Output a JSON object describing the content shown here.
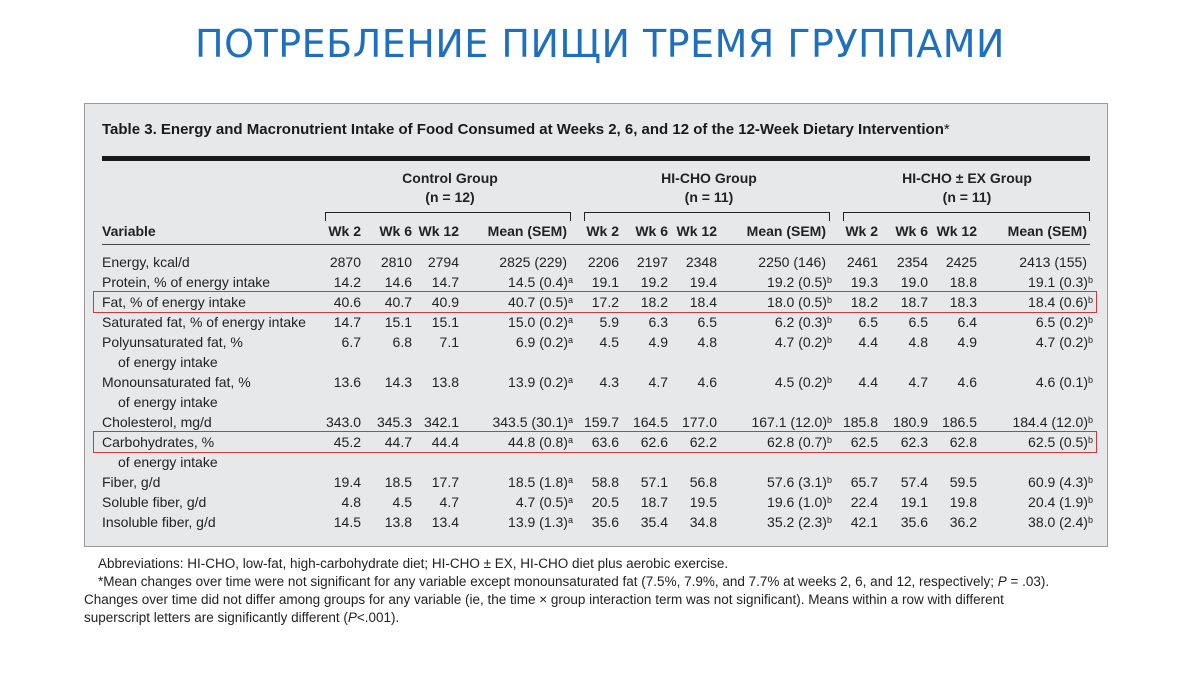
{
  "slide_title": "ПОТРЕБЛЕНИЕ ПИЩИ ТРЕМЯ ГРУППАМИ",
  "table": {
    "caption": "Table 3. Energy and Macronutrient Intake of Food Consumed at Weeks 2, 6, and 12 of the 12-Week Dietary Intervention",
    "caption_mark": "*",
    "groups": [
      {
        "name": "Control Group",
        "n": "(n = 12)"
      },
      {
        "name": "HI-CHO Group",
        "n": "(n = 11)"
      },
      {
        "name": "HI-CHO ± EX Group",
        "n": "(n = 11)"
      }
    ],
    "variable_header": "Variable",
    "column_headers": [
      "Wk 2",
      "Wk 6",
      "Wk 12",
      "Mean (SEM)"
    ],
    "rows": [
      {
        "label": "Energy, kcal/d",
        "label2": "",
        "highlight": false,
        "cells": [
          "2870",
          "2810",
          "2794",
          "2825 (229)",
          "2206",
          "2197",
          "2348",
          "2250 (146)",
          "2461",
          "2354",
          "2425",
          "2413 (155)"
        ],
        "sups": [
          "",
          "",
          ""
        ]
      },
      {
        "label": "Protein, % of energy intake",
        "label2": "",
        "highlight": false,
        "cells": [
          "14.2",
          "14.6",
          "14.7",
          "14.5 (0.4)",
          "19.1",
          "19.2",
          "19.4",
          "19.2 (0.5)",
          "19.3",
          "19.0",
          "18.8",
          "19.1 (0.3)"
        ],
        "sups": [
          "a",
          "b",
          "b"
        ]
      },
      {
        "label": "Fat, % of energy intake",
        "label2": "",
        "highlight": true,
        "cells": [
          "40.6",
          "40.7",
          "40.9",
          "40.7 (0.5)",
          "17.2",
          "18.2",
          "18.4",
          "18.0 (0.5)",
          "18.2",
          "18.7",
          "18.3",
          "18.4 (0.6)"
        ],
        "sups": [
          "a",
          "b",
          "b"
        ]
      },
      {
        "label": "Saturated fat, % of energy intake",
        "label2": "",
        "highlight": false,
        "cells": [
          "14.7",
          "15.1",
          "15.1",
          "15.0 (0.2)",
          "5.9",
          "6.3",
          "6.5",
          "6.2 (0.3)",
          "6.5",
          "6.5",
          "6.4",
          "6.5 (0.2)"
        ],
        "sups": [
          "a",
          "b",
          "b"
        ]
      },
      {
        "label": "Polyunsaturated fat, %",
        "label2": "of energy intake",
        "highlight": false,
        "cells": [
          "6.7",
          "6.8",
          "7.1",
          "6.9 (0.2)",
          "4.5",
          "4.9",
          "4.8",
          "4.7 (0.2)",
          "4.4",
          "4.8",
          "4.9",
          "4.7 (0.2)"
        ],
        "sups": [
          "a",
          "b",
          "b"
        ]
      },
      {
        "label": "Monounsaturated fat, %",
        "label2": "of energy intake",
        "highlight": false,
        "cells": [
          "13.6",
          "14.3",
          "13.8",
          "13.9 (0.2)",
          "4.3",
          "4.7",
          "4.6",
          "4.5 (0.2)",
          "4.4",
          "4.7",
          "4.6",
          "4.6 (0.1)"
        ],
        "sups": [
          "a",
          "b",
          "b"
        ]
      },
      {
        "label": "Cholesterol, mg/d",
        "label2": "",
        "highlight": false,
        "cells": [
          "343.0",
          "345.3",
          "342.1",
          "343.5 (30.1)",
          "159.7",
          "164.5",
          "177.0",
          "167.1 (12.0)",
          "185.8",
          "180.9",
          "186.5",
          "184.4 (12.0)"
        ],
        "sups": [
          "a",
          "b",
          "b"
        ]
      },
      {
        "label": "Carbohydrates, %",
        "label2": "of energy intake",
        "highlight": true,
        "cells": [
          "45.2",
          "44.7",
          "44.4",
          "44.8 (0.8)",
          "63.6",
          "62.6",
          "62.2",
          "62.8 (0.7)",
          "62.5",
          "62.3",
          "62.8",
          "62.5 (0.5)"
        ],
        "sups": [
          "a",
          "b",
          "b"
        ]
      },
      {
        "label": "Fiber, g/d",
        "label2": "",
        "highlight": false,
        "cells": [
          "19.4",
          "18.5",
          "17.7",
          "18.5 (1.8)",
          "58.8",
          "57.1",
          "56.8",
          "57.6 (3.1)",
          "65.7",
          "57.4",
          "59.5",
          "60.9 (4.3)"
        ],
        "sups": [
          "a",
          "b",
          "b"
        ]
      },
      {
        "label": "Soluble fiber, g/d",
        "label2": "",
        "highlight": false,
        "cells": [
          "4.8",
          "4.5",
          "4.7",
          "4.7 (0.5)",
          "20.5",
          "18.7",
          "19.5",
          "19.6 (1.0)",
          "22.4",
          "19.1",
          "19.8",
          "20.4 (1.9)"
        ],
        "sups": [
          "a",
          "b",
          "b"
        ]
      },
      {
        "label": "Insoluble fiber, g/d",
        "label2": "",
        "highlight": false,
        "cells": [
          "14.5",
          "13.8",
          "13.4",
          "13.9 (1.3)",
          "35.6",
          "35.4",
          "34.8",
          "35.2 (2.3)",
          "42.1",
          "35.6",
          "36.2",
          "38.0 (2.4)"
        ],
        "sups": [
          "a",
          "b",
          "b"
        ]
      }
    ]
  },
  "footnotes": {
    "abbreviations": "Abbreviations: HI-CHO, low-fat, high-carbohydrate diet; HI-CHO ± EX, HI-CHO diet plus aerobic exercise.",
    "note_line1_a": "*Mean changes over time were not significant for any variable except monounsaturated fat (7.5%, 7.9%, and 7.7% at weeks 2, 6, and 12, respectively; ",
    "note_line1_p": "P",
    "note_line1_b": " = .03).",
    "note_line2": "Changes over time did not differ among groups for any variable (ie, the time × group interaction term was not significant). Means within a row with different",
    "note_line3_a": "superscript letters are significantly different (",
    "note_line3_p": "P",
    "note_line3_b": "<.001)."
  }
}
